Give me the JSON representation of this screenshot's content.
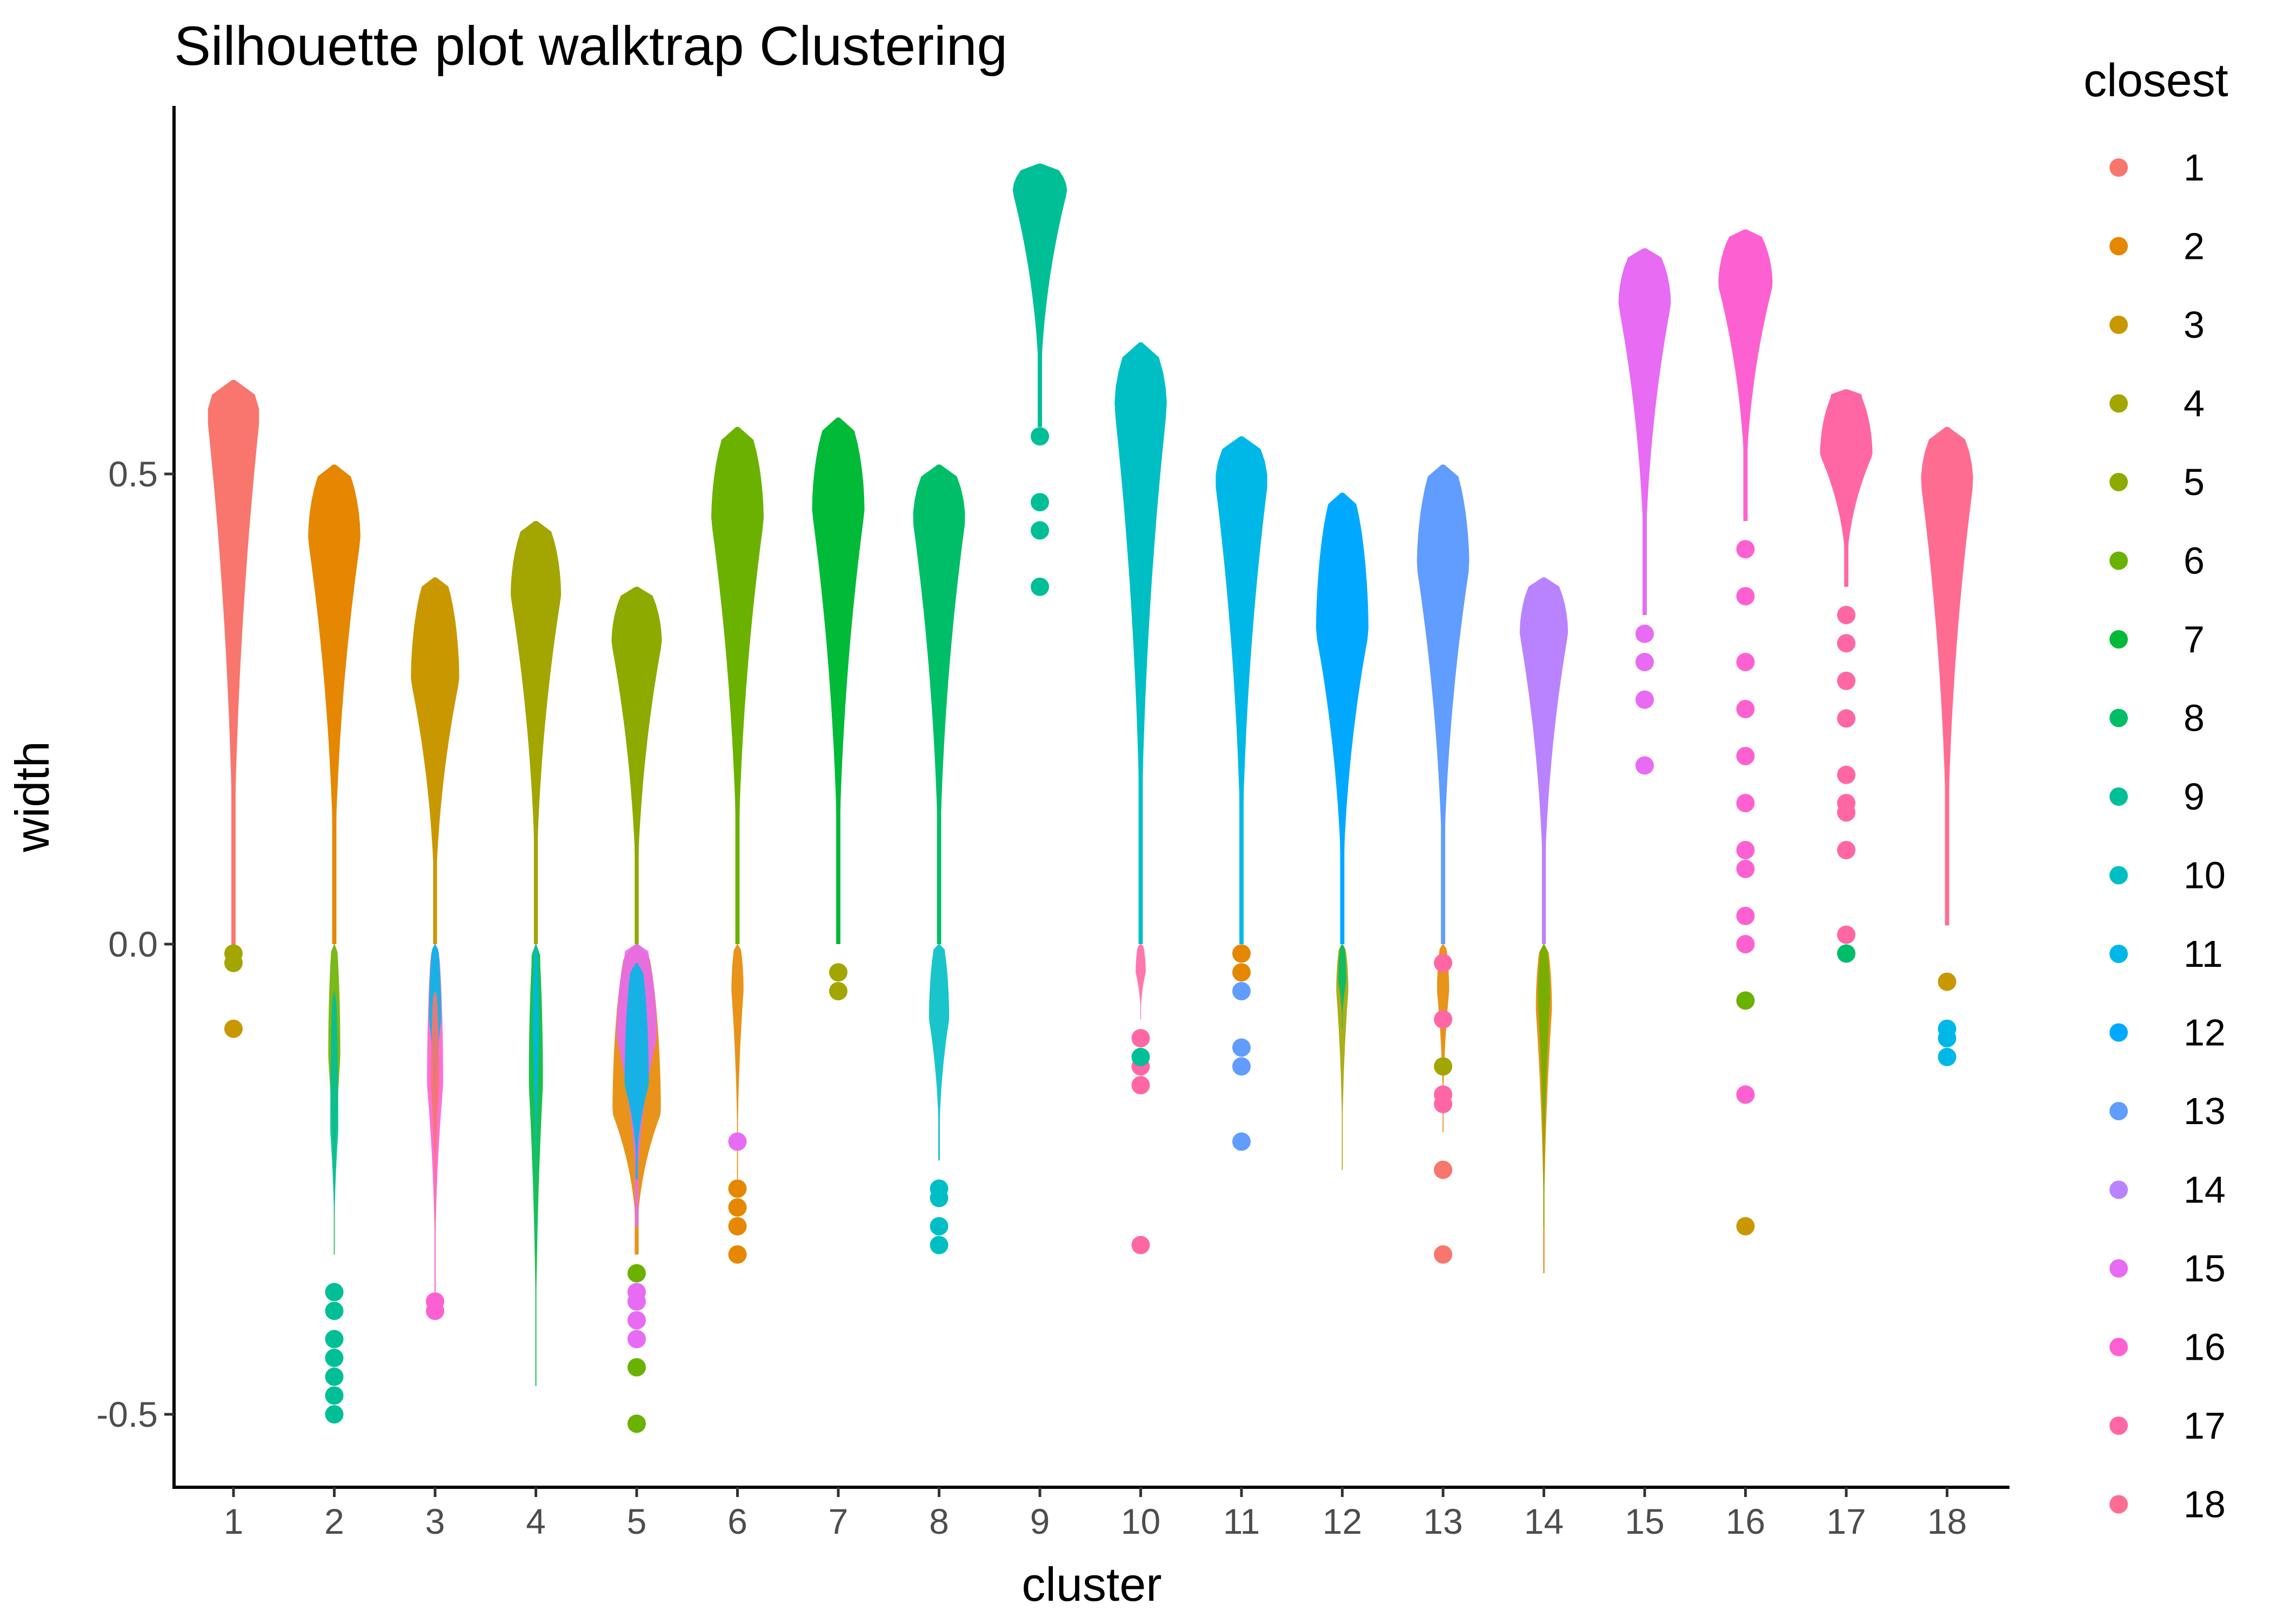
{
  "chart_data": {
    "type": "violin-scatter",
    "title": "Silhouette plot walktrap Clustering",
    "xlabel": "cluster",
    "ylabel": "width",
    "legend_title": "closest",
    "legend_position": "right",
    "grid": false,
    "ylim": [
      -0.58,
      0.88
    ],
    "y_ticks": [
      {
        "value": 0.5,
        "label": "0.5"
      },
      {
        "value": 0.0,
        "label": "0.0"
      },
      {
        "value": -0.5,
        "label": "-0.5"
      }
    ],
    "categories": [
      "1",
      "2",
      "3",
      "4",
      "5",
      "6",
      "7",
      "8",
      "9",
      "10",
      "11",
      "12",
      "13",
      "14",
      "15",
      "16",
      "17",
      "18"
    ],
    "colors": [
      "#F8766D",
      "#E7851E",
      "#D09400",
      "#B2A100",
      "#89AC00",
      "#45B500",
      "#00BC51",
      "#00C087",
      "#00C0B2",
      "#00BCD6",
      "#00B3F2",
      "#29A3FF",
      "#9C8DFF",
      "#D277FF",
      "#F166E8",
      "#FF61C7",
      "#FF6C91",
      "#FF6C91"
    ],
    "legend_colors": [
      "#F8766D",
      "#E58700",
      "#C99800",
      "#A3A500",
      "#8DAA00",
      "#6BB100",
      "#00BA38",
      "#00BE67",
      "#00BF96",
      "#00BFC4",
      "#00B8E7",
      "#00A9FF",
      "#619CFF",
      "#B983FF",
      "#E76BF3",
      "#FD61D1",
      "#FF67A4",
      "#FF6C91"
    ],
    "series": [
      {
        "cluster": "1",
        "max": 0.6,
        "min": -0.02,
        "mode": 0.56,
        "width": 0.26,
        "outliers": [
          {
            "closest": 4,
            "values": [
              -0.01,
              -0.02
            ]
          },
          {
            "closest": 3,
            "values": [
              -0.09
            ]
          }
        ]
      },
      {
        "cluster": "2",
        "max": 0.51,
        "min": 0.0,
        "mode": 0.43,
        "width": 0.26,
        "below": [
          {
            "closest": 6,
            "min": -0.33,
            "max": 0.0,
            "mode": -0.12,
            "width": 0.06
          },
          {
            "closest": 9,
            "min": -0.33,
            "max": -0.05,
            "mode": -0.2,
            "width": 0.04
          }
        ],
        "outliers": [
          {
            "closest": 9,
            "values": [
              -0.37,
              -0.39,
              -0.42,
              -0.44,
              -0.46,
              -0.48,
              -0.5
            ]
          }
        ]
      },
      {
        "cluster": "3",
        "max": 0.39,
        "min": 0.0,
        "mode": 0.28,
        "width": 0.24,
        "below": [
          {
            "closest": 16,
            "min": -0.37,
            "max": 0.0,
            "mode": -0.15,
            "width": 0.08
          },
          {
            "closest": 11,
            "min": -0.2,
            "max": 0.0,
            "mode": -0.08,
            "width": 0.06
          },
          {
            "closest": 1,
            "min": -0.3,
            "max": -0.05,
            "mode": -0.15,
            "width": 0.04
          }
        ],
        "outliers": [
          {
            "closest": 16,
            "values": [
              -0.38,
              -0.39
            ]
          }
        ]
      },
      {
        "cluster": "4",
        "max": 0.45,
        "min": 0.0,
        "mode": 0.37,
        "width": 0.25,
        "below": [
          {
            "closest": 7,
            "min": -0.47,
            "max": 0.0,
            "mode": -0.15,
            "width": 0.07
          },
          {
            "closest": 11,
            "min": -0.32,
            "max": 0.0,
            "mode": -0.1,
            "width": 0.03
          }
        ]
      },
      {
        "cluster": "5",
        "max": 0.38,
        "min": 0.0,
        "mode": 0.32,
        "width": 0.25,
        "below": [
          {
            "closest": 2,
            "min": -0.33,
            "max": 0.0,
            "mode": -0.18,
            "width": 0.24
          },
          {
            "closest": 15,
            "min": -0.3,
            "max": 0.0,
            "mode": -0.1,
            "width": 0.2
          },
          {
            "closest": 11,
            "min": -0.25,
            "max": -0.02,
            "mode": -0.15,
            "width": 0.12
          }
        ],
        "outliers": [
          {
            "closest": 15,
            "values": [
              -0.37,
              -0.38,
              -0.4,
              -0.42
            ]
          },
          {
            "closest": 6,
            "values": [
              -0.35,
              -0.45,
              -0.51
            ]
          }
        ]
      },
      {
        "cluster": "6",
        "max": 0.55,
        "min": 0.0,
        "mode": 0.45,
        "width": 0.26,
        "below": [
          {
            "closest": 2,
            "min": -0.25,
            "max": 0.0,
            "mode": -0.05,
            "width": 0.06
          }
        ],
        "outliers": [
          {
            "closest": 2,
            "values": [
              -0.26,
              -0.28,
              -0.3,
              -0.33
            ]
          },
          {
            "closest": 15,
            "values": [
              -0.21
            ]
          }
        ]
      },
      {
        "cluster": "7",
        "max": 0.56,
        "min": 0.0,
        "mode": 0.46,
        "width": 0.26,
        "outliers": [
          {
            "closest": 4,
            "values": [
              -0.03,
              -0.05
            ]
          }
        ]
      },
      {
        "cluster": "8",
        "max": 0.51,
        "min": 0.0,
        "mode": 0.45,
        "width": 0.26,
        "below": [
          {
            "closest": 10,
            "min": -0.23,
            "max": 0.0,
            "mode": -0.08,
            "width": 0.1
          }
        ],
        "outliers": [
          {
            "closest": 10,
            "values": [
              -0.26,
              -0.27,
              -0.3,
              -0.32
            ]
          }
        ]
      },
      {
        "cluster": "9",
        "max": 0.83,
        "min": 0.55,
        "mode": 0.8,
        "width": 0.27,
        "outliers": [
          {
            "closest": 9,
            "values": [
              0.54,
              0.47,
              0.44,
              0.38
            ]
          }
        ]
      },
      {
        "cluster": "10",
        "max": 0.64,
        "min": 0.0,
        "mode": 0.57,
        "width": 0.26,
        "below": [
          {
            "closest": 17,
            "min": -0.08,
            "max": 0.0,
            "mode": -0.03,
            "width": 0.05
          }
        ],
        "outliers": [
          {
            "closest": 17,
            "values": [
              -0.1,
              -0.13,
              -0.15,
              -0.32
            ]
          },
          {
            "closest": 9,
            "values": [
              -0.12
            ]
          }
        ]
      },
      {
        "cluster": "11",
        "max": 0.54,
        "min": 0.0,
        "mode": 0.49,
        "width": 0.26,
        "outliers": [
          {
            "closest": 2,
            "values": [
              -0.01,
              -0.03
            ]
          },
          {
            "closest": 13,
            "values": [
              -0.05,
              -0.11,
              -0.13,
              -0.21
            ]
          }
        ]
      },
      {
        "cluster": "12",
        "max": 0.48,
        "min": 0.0,
        "mode": 0.33,
        "width": 0.26,
        "below": [
          {
            "closest": 4,
            "min": -0.24,
            "max": 0.0,
            "mode": -0.05,
            "width": 0.06
          },
          {
            "closest": 8,
            "min": -0.09,
            "max": 0.0,
            "mode": -0.04,
            "width": 0.04
          }
        ]
      },
      {
        "cluster": "13",
        "max": 0.51,
        "min": 0.0,
        "mode": 0.4,
        "width": 0.26,
        "below": [
          {
            "closest": 2,
            "min": -0.2,
            "max": 0.0,
            "mode": -0.05,
            "width": 0.06
          }
        ],
        "outliers": [
          {
            "closest": 17,
            "values": [
              -0.02,
              -0.08,
              -0.16,
              -0.17
            ]
          },
          {
            "closest": 4,
            "values": [
              -0.13
            ]
          },
          {
            "closest": 1,
            "values": [
              -0.24,
              -0.33
            ]
          }
        ]
      },
      {
        "cluster": "14",
        "max": 0.39,
        "min": 0.0,
        "mode": 0.33,
        "width": 0.24,
        "below": [
          {
            "closest": 2,
            "min": -0.35,
            "max": 0.0,
            "mode": -0.07,
            "width": 0.08
          },
          {
            "closest": 6,
            "min": -0.3,
            "max": 0.0,
            "mode": -0.06,
            "width": 0.06
          }
        ]
      },
      {
        "cluster": "15",
        "max": 0.74,
        "min": 0.35,
        "mode": 0.68,
        "width": 0.26,
        "outliers": [
          {
            "closest": 15,
            "values": [
              0.33,
              0.3,
              0.26,
              0.19
            ]
          }
        ]
      },
      {
        "cluster": "16",
        "max": 0.76,
        "min": 0.45,
        "mode": 0.7,
        "width": 0.27,
        "outliers": [
          {
            "closest": 16,
            "values": [
              0.42,
              0.37,
              0.3,
              0.25,
              0.2,
              0.15,
              0.1,
              0.08,
              0.03,
              0.0
            ]
          },
          {
            "closest": 6,
            "values": [
              -0.06
            ]
          },
          {
            "closest": 3,
            "values": [
              -0.16,
              -0.3
            ]
          },
          {
            "closest": 16,
            "values": [
              -0.16
            ]
          }
        ]
      },
      {
        "cluster": "17",
        "max": 0.59,
        "min": 0.38,
        "mode": 0.52,
        "width": 0.26,
        "outliers": [
          {
            "closest": 17,
            "values": [
              0.35,
              0.32,
              0.28,
              0.24,
              0.18,
              0.15,
              0.14,
              0.1,
              0.01
            ]
          },
          {
            "closest": 8,
            "values": [
              -0.01
            ]
          }
        ]
      },
      {
        "cluster": "18",
        "max": 0.55,
        "min": 0.02,
        "mode": 0.49,
        "width": 0.26,
        "outliers": [
          {
            "closest": 3,
            "values": [
              -0.04
            ]
          },
          {
            "closest": 11,
            "values": [
              -0.09,
              -0.1,
              -0.12
            ]
          }
        ]
      }
    ]
  }
}
